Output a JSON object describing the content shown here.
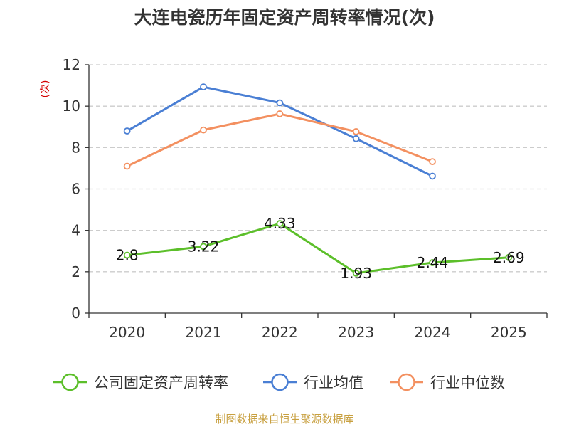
{
  "chart_data": {
    "type": "line",
    "title": "大连电瓷历年固定资产周转率情况(次)",
    "ylabel": "(次)",
    "xlabel": "",
    "categories": [
      "2020",
      "2021",
      "2022",
      "2023",
      "2024",
      "2025"
    ],
    "ylim": [
      0,
      12
    ],
    "yticks": [
      0,
      2,
      4,
      6,
      8,
      10,
      12
    ],
    "grid": true,
    "legend_position": "bottom",
    "series": [
      {
        "name": "公司固定资产周转率",
        "color": "#5cbf2a",
        "values": [
          2.8,
          3.22,
          4.33,
          1.93,
          2.44,
          2.69
        ],
        "labels": [
          "2.8",
          "3.22",
          "4.33",
          "1.93",
          "2.44",
          "2.69"
        ],
        "show_labels": true
      },
      {
        "name": "行业均值",
        "color": "#4a7fd4",
        "values": [
          8.8,
          10.93,
          10.16,
          8.43,
          6.62,
          null
        ],
        "show_labels": false
      },
      {
        "name": "行业中位数",
        "color": "#f39060",
        "values": [
          7.1,
          8.85,
          9.63,
          8.77,
          7.32,
          null
        ],
        "show_labels": false
      }
    ]
  },
  "source": "制图数据来自恒生聚源数据库"
}
